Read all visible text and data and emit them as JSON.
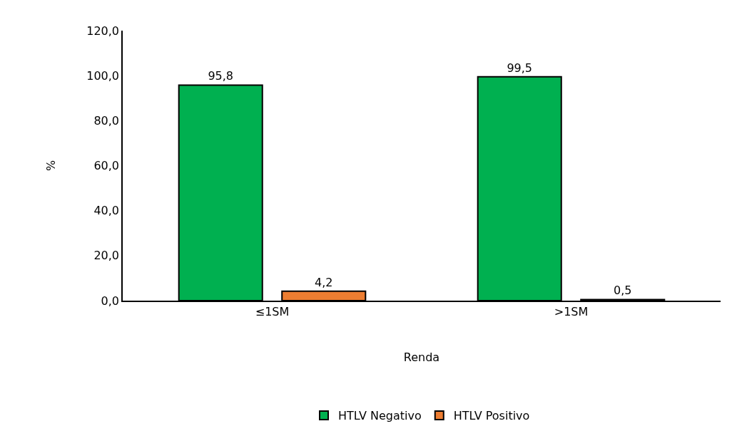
{
  "chart_data": {
    "type": "bar",
    "xlabel": "Renda",
    "ylabel": "%",
    "categories": [
      "≤1SM",
      ">1SM"
    ],
    "series": [
      {
        "name": "HTLV Negativo",
        "color": "#00b050",
        "values": [
          95.8,
          99.5
        ],
        "value_labels": [
          "95,8",
          "99,5"
        ]
      },
      {
        "name": "HTLV Positivo",
        "color": "#ed7d31",
        "values": [
          4.2,
          0.5
        ],
        "value_labels": [
          "4,2",
          "0,5"
        ]
      }
    ],
    "ylim": [
      0,
      120
    ],
    "yticks": [
      {
        "value": 0,
        "label": "0,0"
      },
      {
        "value": 20,
        "label": "20,0"
      },
      {
        "value": 40,
        "label": "40,0"
      },
      {
        "value": 60,
        "label": "60,0"
      },
      {
        "value": 80,
        "label": "80,0"
      },
      {
        "value": 100,
        "label": "100,0"
      },
      {
        "value": 120,
        "label": "120,0"
      }
    ],
    "legend": "bottom"
  }
}
